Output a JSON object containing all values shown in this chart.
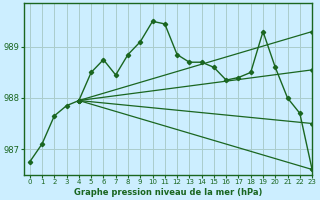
{
  "title": "Graphe pression niveau de la mer (hPa)",
  "bg_color": "#cceeff",
  "grid_color": "#aacccc",
  "line_color": "#1a6620",
  "spine_color": "#1a6620",
  "xlim": [
    -0.5,
    23
  ],
  "ylim": [
    986.5,
    989.85
  ],
  "yticks": [
    987,
    988,
    989
  ],
  "xticks": [
    0,
    1,
    2,
    3,
    4,
    5,
    6,
    7,
    8,
    9,
    10,
    11,
    12,
    13,
    14,
    15,
    16,
    17,
    18,
    19,
    20,
    21,
    22,
    23
  ],
  "main_line": {
    "x": [
      0,
      1,
      2,
      3,
      4,
      5,
      6,
      7,
      8,
      9,
      10,
      11,
      12,
      13,
      14,
      15,
      16,
      17,
      18,
      19,
      20,
      21,
      22,
      23
    ],
    "y": [
      986.75,
      987.1,
      987.65,
      987.85,
      987.95,
      988.5,
      988.75,
      988.45,
      988.85,
      989.1,
      989.5,
      989.45,
      988.85,
      988.7,
      988.7,
      988.6,
      988.35,
      988.4,
      988.5,
      989.3,
      988.6,
      988.0,
      987.7,
      986.6
    ]
  },
  "fan_lines": [
    {
      "x": [
        4,
        23
      ],
      "y": [
        987.95,
        986.6
      ]
    },
    {
      "x": [
        4,
        23
      ],
      "y": [
        987.95,
        987.5
      ]
    },
    {
      "x": [
        4,
        23
      ],
      "y": [
        987.95,
        988.55
      ]
    },
    {
      "x": [
        4,
        23
      ],
      "y": [
        987.95,
        989.3
      ]
    }
  ]
}
